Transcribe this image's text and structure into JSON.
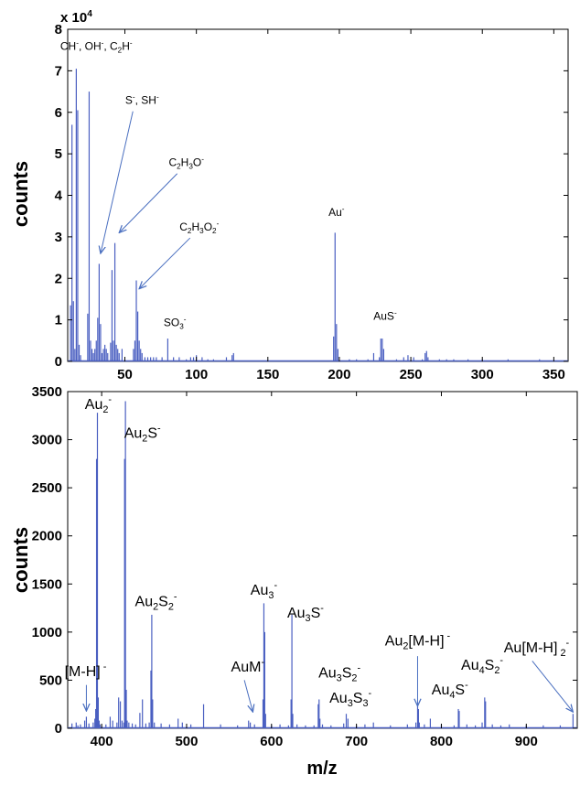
{
  "chart_data": [
    {
      "type": "bar",
      "title": "",
      "xlabel": "",
      "ylabel": "counts",
      "xlim": [
        10,
        360
      ],
      "ylim": [
        0,
        8
      ],
      "y_scale_label": "x 10",
      "y_scale_exponent": "4",
      "xticks": [
        50,
        100,
        150,
        200,
        250,
        300,
        350
      ],
      "yticks": [
        0,
        1,
        2,
        3,
        4,
        5,
        6,
        7,
        8
      ],
      "grid": false,
      "color": "#4a5fc1",
      "series": [
        {
          "x": [
            12,
            13,
            14,
            15,
            16,
            17,
            18,
            19,
            24,
            25,
            26,
            27,
            28,
            29,
            30,
            31,
            32,
            33,
            34,
            35,
            36,
            37,
            38,
            40,
            41,
            42,
            43,
            44,
            45,
            46,
            48,
            56,
            57,
            58,
            59,
            60,
            61,
            62,
            64,
            66,
            68,
            70,
            72,
            76,
            80,
            84,
            88,
            93,
            96,
            98,
            100,
            104,
            108,
            112,
            121,
            125,
            126,
            196,
            197,
            198,
            199,
            207,
            212,
            220,
            224,
            228,
            229,
            230,
            231,
            240,
            245,
            248,
            252,
            258,
            260,
            261,
            262,
            270,
            275,
            280,
            290,
            300,
            318,
            340
          ],
          "y": [
            1.35,
            5.7,
            1.45,
            0.3,
            7.05,
            6.05,
            0.4,
            0.15,
            1.15,
            6.5,
            0.5,
            0.3,
            0.2,
            0.3,
            0.5,
            1.05,
            2.35,
            0.9,
            0.2,
            0.3,
            0.4,
            0.3,
            0.2,
            0.45,
            2.2,
            0.5,
            2.85,
            0.4,
            0.3,
            0.2,
            0.3,
            0.3,
            0.5,
            1.95,
            1.2,
            0.5,
            0.3,
            0.2,
            0.1,
            0.1,
            0.1,
            0.1,
            0.1,
            0.1,
            0.55,
            0.1,
            0.1,
            0.05,
            0.1,
            0.1,
            0.15,
            0.1,
            0.05,
            0.05,
            0.1,
            0.15,
            0.2,
            0.6,
            3.1,
            0.9,
            0.3,
            0.05,
            0.05,
            0.05,
            0.2,
            0.1,
            0.55,
            0.55,
            0.3,
            0.05,
            0.1,
            0.15,
            0.1,
            0.05,
            0.2,
            0.25,
            0.1,
            0.05,
            0.05,
            0.05,
            0.05,
            0.05,
            0.05,
            0.05
          ]
        }
      ],
      "annotations": [
        {
          "parts": [
            {
              "t": "CH"
            },
            {
              "t": "-",
              "s": "sup"
            },
            {
              "t": ", OH"
            },
            {
              "t": "-",
              "s": "sup"
            },
            {
              "t": ", C"
            },
            {
              "t": "2",
              "s": "sub"
            },
            {
              "t": "H"
            },
            {
              "t": "-",
              "s": "sup"
            }
          ],
          "at": [
            30,
            7.5
          ]
        },
        {
          "parts": [
            {
              "t": "S"
            },
            {
              "t": "-",
              "s": "sup"
            },
            {
              "t": ", SH"
            },
            {
              "t": "-",
              "s": "sup"
            }
          ],
          "at": [
            62,
            6.2
          ],
          "arrow_to": [
            33,
            2.6
          ]
        },
        {
          "parts": [
            {
              "t": "C"
            },
            {
              "t": "2",
              "s": "sub"
            },
            {
              "t": "H"
            },
            {
              "t": "3",
              "s": "sub"
            },
            {
              "t": "O"
            },
            {
              "t": "-",
              "s": "sup"
            }
          ],
          "at": [
            93,
            4.7
          ],
          "arrow_to": [
            46,
            3.1
          ]
        },
        {
          "parts": [
            {
              "t": "C"
            },
            {
              "t": "2",
              "s": "sub"
            },
            {
              "t": "H"
            },
            {
              "t": "3",
              "s": "sub"
            },
            {
              "t": "O"
            },
            {
              "t": "2",
              "s": "sub"
            },
            {
              "t": "-",
              "s": "sup"
            }
          ],
          "at": [
            102,
            3.15
          ],
          "arrow_to": [
            60,
            1.75
          ]
        },
        {
          "parts": [
            {
              "t": "SO"
            },
            {
              "t": "3",
              "s": "sub"
            },
            {
              "t": "-",
              "s": "sup"
            }
          ],
          "at": [
            85,
            0.85
          ]
        },
        {
          "parts": [
            {
              "t": "Au"
            },
            {
              "t": "-",
              "s": "sup"
            }
          ],
          "at": [
            198,
            3.5
          ]
        },
        {
          "parts": [
            {
              "t": "AuS"
            },
            {
              "t": "-",
              "s": "sup"
            }
          ],
          "at": [
            232,
            1.0
          ]
        }
      ]
    },
    {
      "type": "bar",
      "title": "",
      "xlabel": "m/z",
      "ylabel": "counts",
      "xlim": [
        360,
        960
      ],
      "ylim": [
        0,
        3500
      ],
      "xticks": [
        400,
        500,
        600,
        700,
        800,
        900
      ],
      "yticks": [
        0,
        500,
        1000,
        1500,
        2000,
        2500,
        3000,
        3500
      ],
      "grid": false,
      "color": "#4a5fc1",
      "series": [
        {
          "x": [
            365,
            370,
            372,
            375,
            380,
            382,
            385,
            390,
            392,
            393,
            394,
            395,
            396,
            397,
            398,
            400,
            405,
            410,
            413,
            418,
            420,
            422,
            424,
            426,
            427,
            428,
            429,
            430,
            432,
            436,
            440,
            445,
            448,
            452,
            456,
            458,
            459,
            460,
            462,
            470,
            480,
            490,
            495,
            505,
            520,
            540,
            560,
            573,
            575,
            580,
            590,
            591,
            592,
            593,
            600,
            610,
            620,
            623,
            624,
            625,
            630,
            640,
            650,
            655,
            656,
            657,
            660,
            670,
            685,
            688,
            690,
            700,
            710,
            720,
            740,
            760,
            770,
            772,
            773,
            774,
            780,
            787,
            800,
            815,
            820,
            821,
            830,
            840,
            848,
            851,
            852,
            860,
            870,
            880,
            900,
            920,
            940,
            955
          ],
          "y": [
            50,
            60,
            30,
            40,
            80,
            120,
            50,
            60,
            100,
            200,
            2800,
            3280,
            320,
            80,
            40,
            30,
            40,
            120,
            80,
            60,
            320,
            280,
            80,
            60,
            2800,
            3400,
            400,
            80,
            60,
            50,
            40,
            160,
            300,
            50,
            60,
            600,
            1180,
            300,
            60,
            50,
            40,
            100,
            60,
            40,
            250,
            40,
            30,
            80,
            60,
            40,
            300,
            1300,
            1000,
            150,
            30,
            40,
            30,
            300,
            1180,
            150,
            40,
            30,
            30,
            250,
            300,
            100,
            40,
            30,
            50,
            150,
            100,
            30,
            40,
            60,
            30,
            40,
            60,
            230,
            200,
            60,
            40,
            100,
            40,
            30,
            200,
            180,
            40,
            30,
            60,
            320,
            280,
            40,
            30,
            40,
            30,
            30,
            30,
            150
          ]
        }
      ],
      "annotations": [
        {
          "parts": [
            {
              "t": "Au"
            },
            {
              "t": "2",
              "s": "sub"
            },
            {
              "t": "-",
              "s": "sup"
            }
          ],
          "at": [
            396,
            3320
          ]
        },
        {
          "parts": [
            {
              "t": "Au"
            },
            {
              "t": "2",
              "s": "sub"
            },
            {
              "t": "S"
            },
            {
              "t": "-",
              "s": "sup"
            }
          ],
          "at": [
            448,
            3020
          ]
        },
        {
          "parts": [
            {
              "t": "Au"
            },
            {
              "t": "2",
              "s": "sub"
            },
            {
              "t": "S"
            },
            {
              "t": "2",
              "s": "sub"
            },
            {
              "t": "-",
              "s": "sup"
            }
          ],
          "at": [
            464,
            1270
          ]
        },
        {
          "parts": [
            {
              "t": "[M-H]"
            },
            {
              "t": " -",
              "s": "sup"
            }
          ],
          "at": [
            381,
            540
          ],
          "arrow_from": [
            382,
            450
          ],
          "arrow_to": [
            382,
            180
          ]
        },
        {
          "parts": [
            {
              "t": "AuM"
            },
            {
              "t": "-",
              "s": "sup"
            }
          ],
          "at": [
            572,
            590
          ],
          "arrow_from": [
            568,
            500
          ],
          "arrow_to": [
            578,
            170
          ]
        },
        {
          "parts": [
            {
              "t": "Au"
            },
            {
              "t": "3",
              "s": "sub"
            },
            {
              "t": "-",
              "s": "sup"
            }
          ],
          "at": [
            591,
            1390
          ]
        },
        {
          "parts": [
            {
              "t": "Au"
            },
            {
              "t": "3",
              "s": "sub"
            },
            {
              "t": "S"
            },
            {
              "t": "-",
              "s": "sup"
            }
          ],
          "at": [
            640,
            1150
          ]
        },
        {
          "parts": [
            {
              "t": "Au"
            },
            {
              "t": "3",
              "s": "sub"
            },
            {
              "t": "S"
            },
            {
              "t": "2",
              "s": "sub"
            },
            {
              "t": "-",
              "s": "sup"
            }
          ],
          "at": [
            680,
            530
          ]
        },
        {
          "parts": [
            {
              "t": "Au"
            },
            {
              "t": "3",
              "s": "sub"
            },
            {
              "t": "S"
            },
            {
              "t": "3",
              "s": "sub"
            },
            {
              "t": "-",
              "s": "sup"
            }
          ],
          "at": [
            693,
            265
          ]
        },
        {
          "parts": [
            {
              "t": "Au"
            },
            {
              "t": "2",
              "s": "sub"
            },
            {
              "t": "[M-H]"
            },
            {
              "t": " -",
              "s": "sup"
            }
          ],
          "at": [
            772,
            860
          ],
          "arrow_from": [
            772,
            750
          ],
          "arrow_to": [
            772,
            230
          ]
        },
        {
          "parts": [
            {
              "t": "Au"
            },
            {
              "t": "4",
              "s": "sub"
            },
            {
              "t": "S"
            },
            {
              "t": "2",
              "s": "sub"
            },
            {
              "t": "-",
              "s": "sup"
            }
          ],
          "at": [
            848,
            610
          ]
        },
        {
          "parts": [
            {
              "t": "Au"
            },
            {
              "t": "4",
              "s": "sub"
            },
            {
              "t": "S"
            },
            {
              "t": "-",
              "s": "sup"
            }
          ],
          "at": [
            810,
            350
          ]
        },
        {
          "parts": [
            {
              "t": "Au[M-H]"
            },
            {
              "t": " 2",
              "s": "sub"
            },
            {
              "t": "-",
              "s": "sup"
            }
          ],
          "at": [
            912,
            790
          ],
          "arrow_from": [
            907,
            700
          ],
          "arrow_to": [
            955,
            170
          ]
        }
      ]
    }
  ]
}
